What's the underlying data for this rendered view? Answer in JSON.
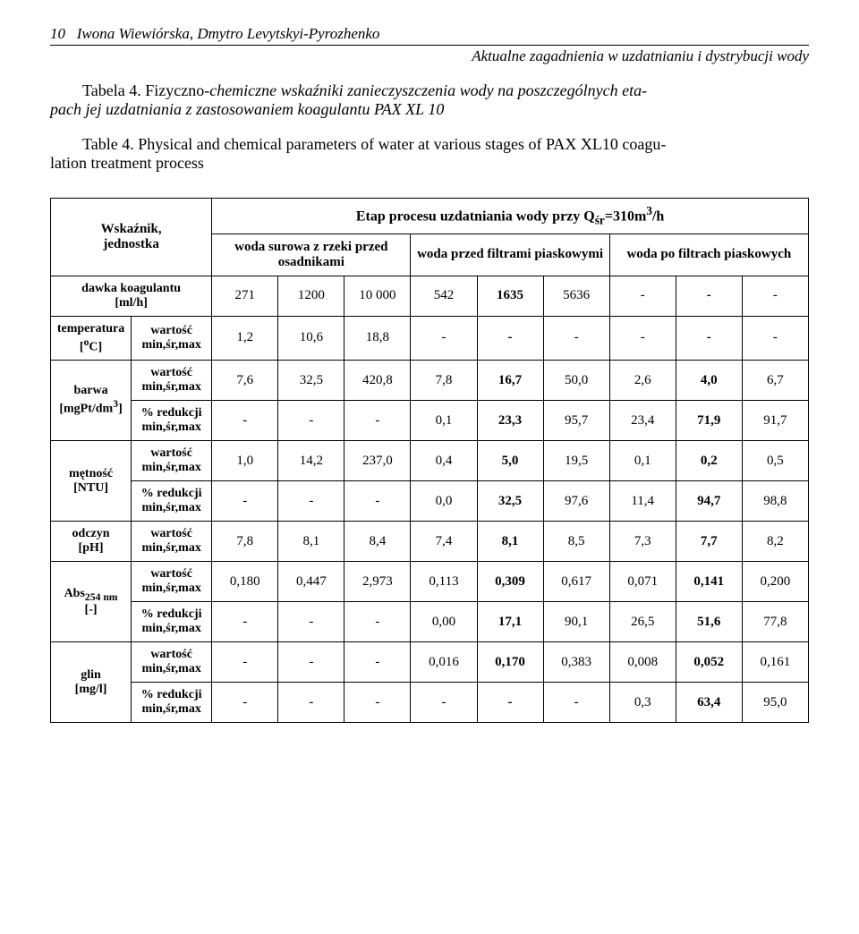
{
  "header": {
    "page_num": "10",
    "authors": "Iwona Wiewiórska, Dmytro Levytskyi-Pyrozhenko",
    "subtitle": "Aktualne zagadnienia w uzdatnianiu i dystrybucji wody"
  },
  "caption_pl": {
    "label": "Tabela 4.",
    "text_a": " Fizyczno-",
    "text_ital": "chemiczne wskaźniki zanieczyszczenia wody na poszczególnych eta-",
    "text_b": "pach jej uzdatniania z zastosowaniem koagulantu ",
    "text_c": "PAX XL 10"
  },
  "caption_en": {
    "label": "Table 4.",
    "text_a": " Physical and chemical parameters of water at various stages of ",
    "text_b": "PAX XL10 coagu-",
    "text_c": "lation treatment process"
  },
  "table": {
    "head": {
      "wskaznik": "Wskaźnik,\njednostka",
      "etap": "Etap procesu uzdatniania wody przy Q",
      "etap_sub": "śr",
      "etap_after": "=310m",
      "etap_sup": "3",
      "etap_end": "/h",
      "h_surowa": "woda surowa z rzeki przed osadnikami",
      "h_przed": "woda przed filtrami piaskowymi",
      "h_po": "woda po filtrach piaskowych"
    },
    "dawka": {
      "label": "dawka koagulantu\n[ml/h]",
      "vals": [
        "271",
        "1200",
        "10 000",
        "542",
        "1635",
        "5636",
        "-",
        "-",
        "-"
      ]
    },
    "rows": [
      {
        "name": "temperatura\n[°C]",
        "name_html": "temperatura<br>[<sup>o</sup>C]",
        "sub": [
          {
            "label": "wartość\nmin,śr,max",
            "vals": [
              "1,2",
              "10,6",
              "18,8",
              "-",
              "-",
              "-",
              "-",
              "-",
              "-"
            ]
          }
        ]
      },
      {
        "name": "barwa\n[mgPt/dm3]",
        "name_html": "barwa<br>[mgPt/dm<sup>3</sup>]",
        "sub": [
          {
            "label": "wartość\nmin,śr,max",
            "vals": [
              "7,6",
              "32,5",
              "420,8",
              "7,8",
              "16,7",
              "50,0",
              "2,6",
              "4,0",
              "6,7"
            ]
          },
          {
            "label": "% redukcji\nmin,śr,max",
            "vals": [
              "-",
              "-",
              "-",
              "0,1",
              "23,3",
              "95,7",
              "23,4",
              "71,9",
              "91,7"
            ]
          }
        ]
      },
      {
        "name": "mętność\n[NTU]",
        "name_html": "mętność<br>[NTU]",
        "sub": [
          {
            "label": "wartość\nmin,śr,max",
            "vals": [
              "1,0",
              "14,2",
              "237,0",
              "0,4",
              "5,0",
              "19,5",
              "0,1",
              "0,2",
              "0,5"
            ]
          },
          {
            "label": "% redukcji\nmin,śr,max",
            "vals": [
              "-",
              "-",
              "-",
              "0,0",
              "32,5",
              "97,6",
              "11,4",
              "94,7",
              "98,8"
            ]
          }
        ]
      },
      {
        "name": "odczyn\n[pH]",
        "name_html": "odczyn<br>[pH]",
        "sub": [
          {
            "label": "wartość\nmin,śr,max",
            "vals": [
              "7,8",
              "8,1",
              "8,4",
              "7,4",
              "8,1",
              "8,5",
              "7,3",
              "7,7",
              "8,2"
            ]
          }
        ]
      },
      {
        "name": "Abs254 nm\n[-]",
        "name_html": "Abs<sub>254 nm</sub><br>[-]",
        "sub": [
          {
            "label": "wartość\nmin,śr,max",
            "vals": [
              "0,180",
              "0,447",
              "2,973",
              "0,113",
              "0,309",
              "0,617",
              "0,071",
              "0,141",
              "0,200"
            ]
          },
          {
            "label": "% redukcji\nmin,śr,max",
            "vals": [
              "-",
              "-",
              "-",
              "0,00",
              "17,1",
              "90,1",
              "26,5",
              "51,6",
              "77,8"
            ]
          }
        ]
      },
      {
        "name": "glin\n[mg/l]",
        "name_html": "glin<br>[mg/l]",
        "sub": [
          {
            "label": "wartość\nmin,śr,max",
            "vals": [
              "-",
              "-",
              "-",
              "0,016",
              "0,170",
              "0,383",
              "0,008",
              "0,052",
              "0,161"
            ]
          },
          {
            "label": "% redukcji\nmin,śr,max",
            "vals": [
              "-",
              "-",
              "-",
              "-",
              "-",
              "-",
              "0,3",
              "63,4",
              "95,0"
            ]
          }
        ]
      }
    ],
    "bold_cols": [
      false,
      false,
      false,
      false,
      true,
      false,
      false,
      true,
      false
    ]
  }
}
